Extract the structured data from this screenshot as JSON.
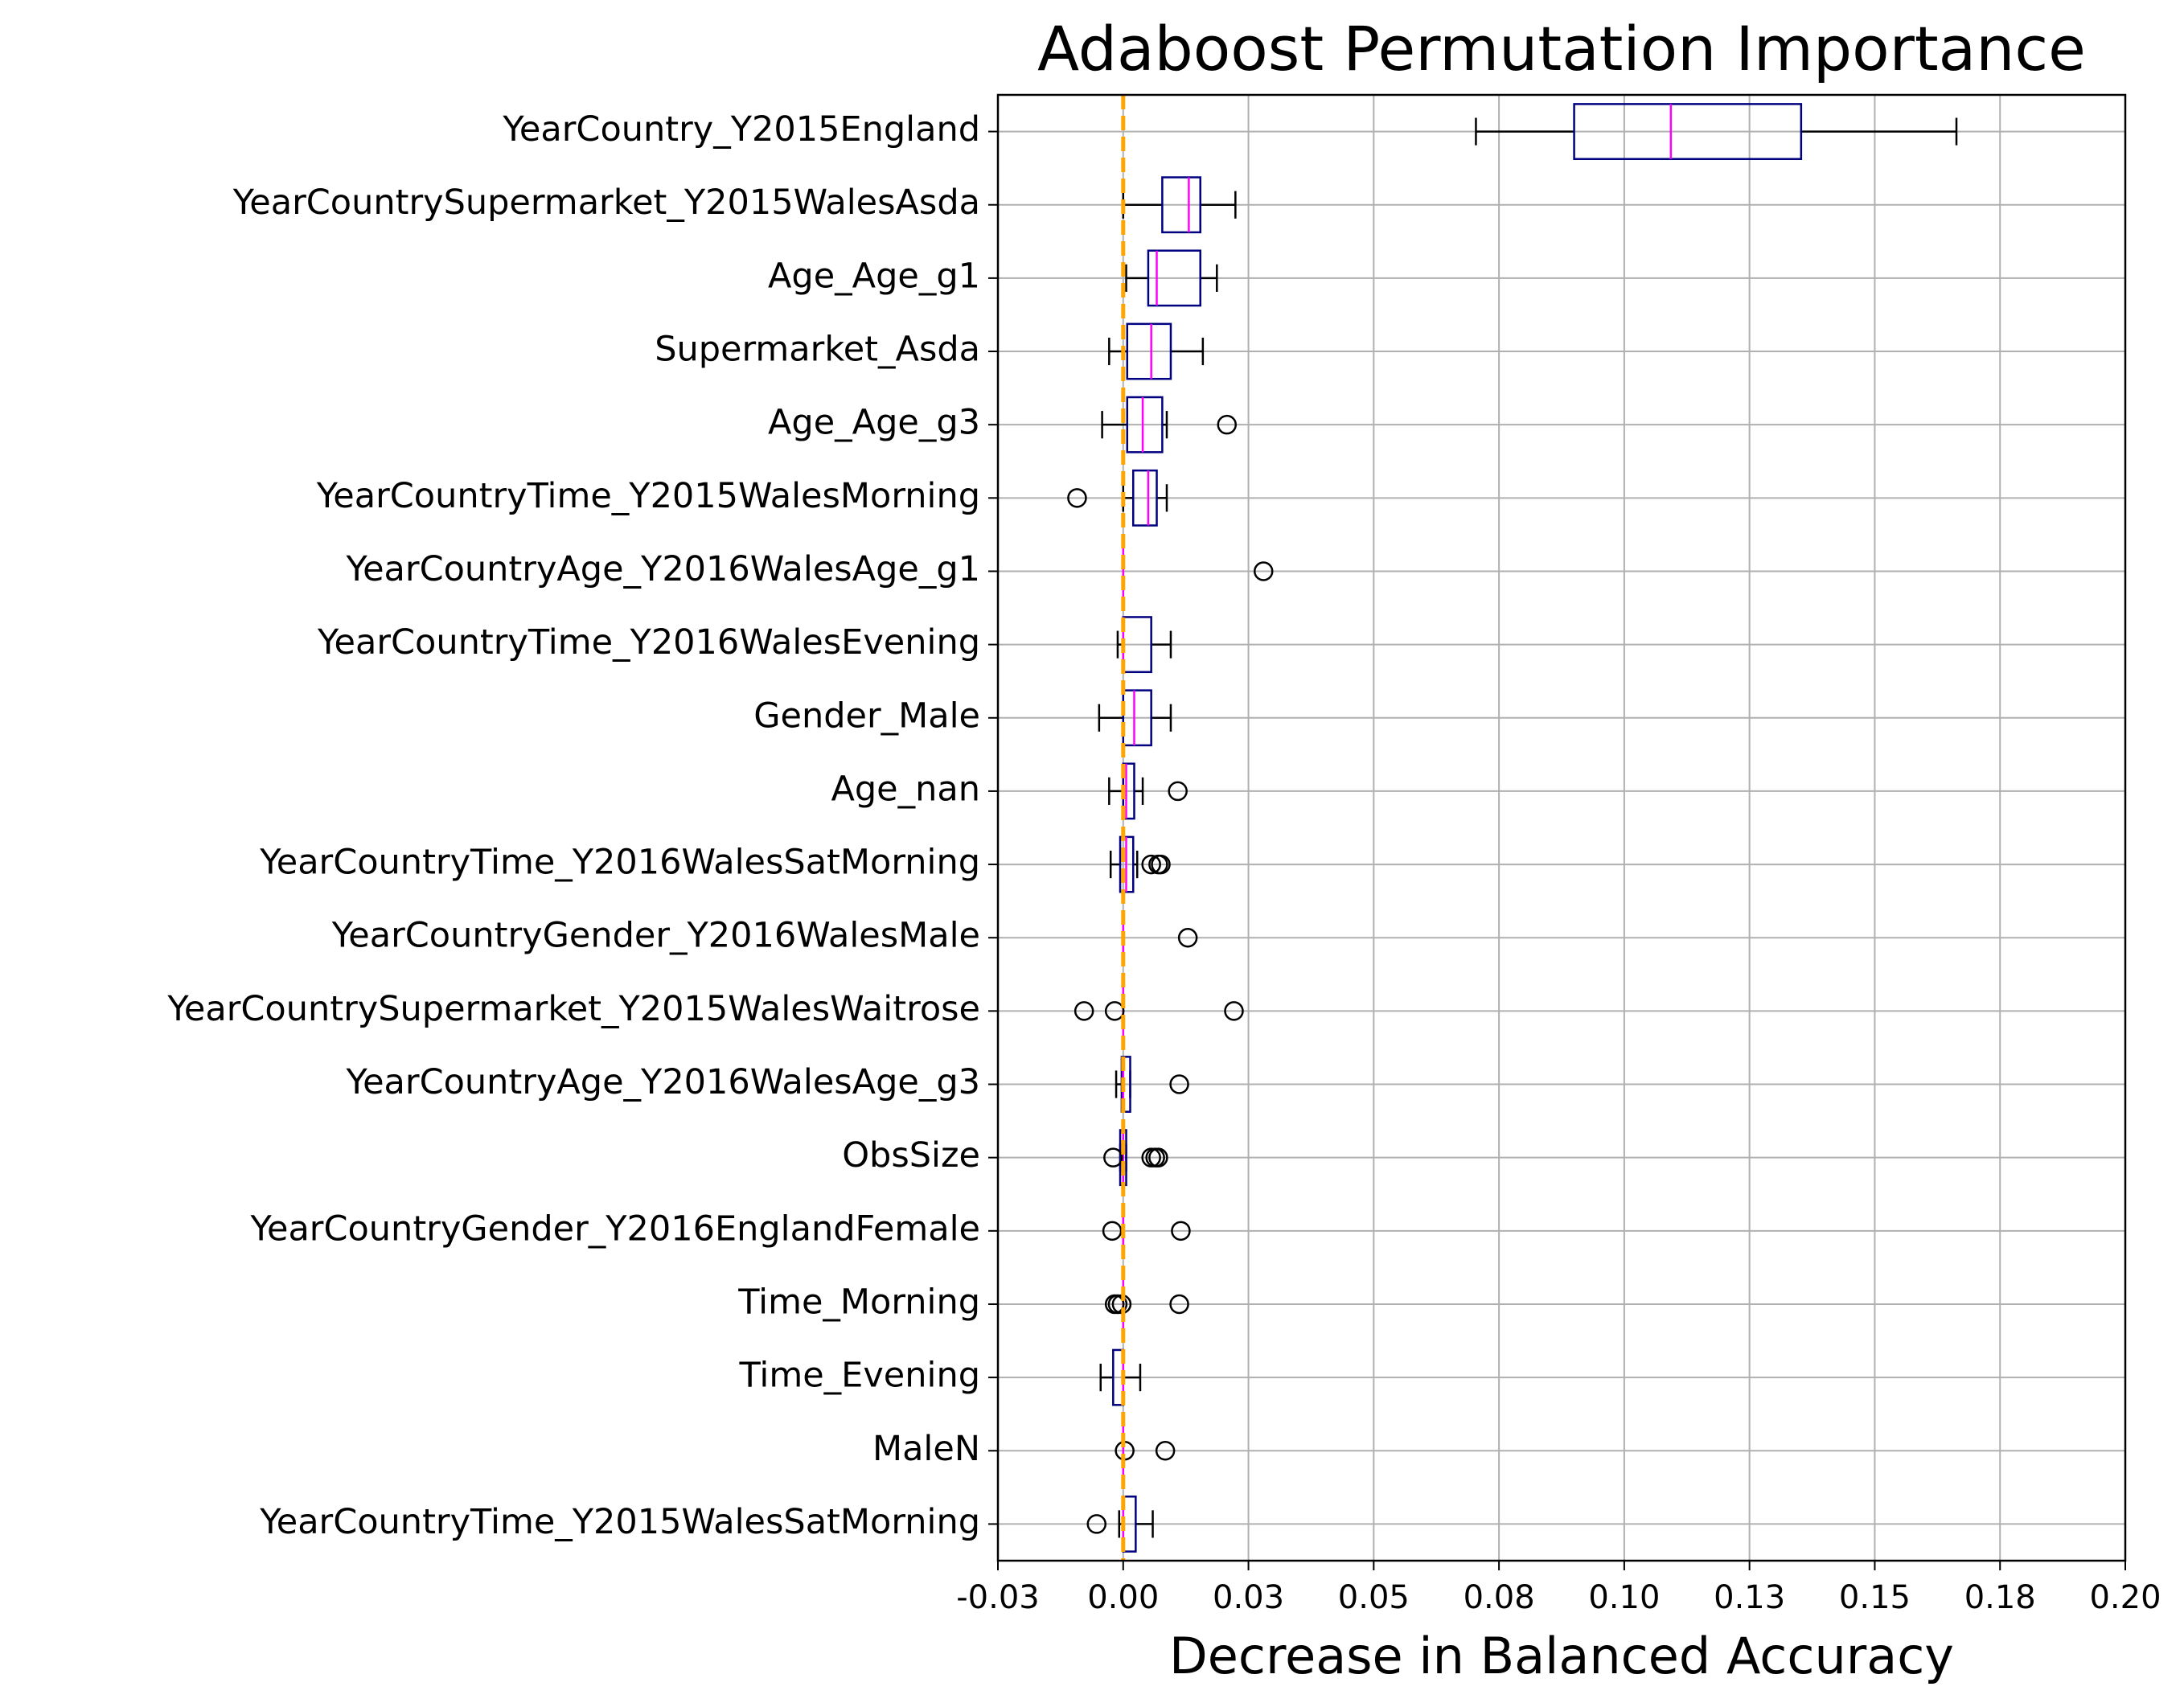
{
  "chart_data": {
    "type": "boxplot",
    "orientation": "horizontal",
    "title": "Adaboost Permutation Importance",
    "x_label": "Decrease in Balanced Accuracy",
    "categories": [
      "YearCountry_Y2015England",
      "YearCountrySupermarket_Y2015WalesAsda",
      "Age_Age_g1",
      "Supermarket_Asda",
      "Age_Age_g3",
      "YearCountryTime_Y2015WalesMorning",
      "YearCountryAge_Y2016WalesAge_g1",
      "YearCountryTime_Y2016WalesEvening",
      "Gender_Male",
      "Age_nan",
      "YearCountryTime_Y2016WalesSatMorning",
      "YearCountryGender_Y2016WalesMale",
      "YearCountrySupermarket_Y2015WalesWaitrose",
      "YearCountryAge_Y2016WalesAge_g3",
      "ObsSize",
      "YearCountryGender_Y2016EnglandFemale",
      "Time_Morning",
      "Time_Evening",
      "MaleN",
      "YearCountryTime_Y2015WalesSatMorning"
    ],
    "boxes": [
      {
        "whislo": 0.0704,
        "q1": 0.09,
        "med": 0.1093,
        "q3": 0.1353,
        "whishi": 0.1663,
        "fliers": []
      },
      {
        "whislo": 0,
        "q1": 0.0078,
        "med": 0.0131,
        "q3": 0.0154,
        "whishi": 0.0224,
        "fliers": []
      },
      {
        "whislo": 0.0006,
        "q1": 0.005,
        "med": 0.0067,
        "q3": 0.0154,
        "whishi": 0.0187,
        "fliers": []
      },
      {
        "whislo": -0.0028,
        "q1": 0.0008,
        "med": 0.0056,
        "q3": 0.0095,
        "whishi": 0.0159,
        "fliers": []
      },
      {
        "whislo": -0.0042,
        "q1": 0.0008,
        "med": 0.0039,
        "q3": 0.0078,
        "whishi": 0.0087,
        "fliers": [
          0.0207
        ]
      },
      {
        "whislo": 0,
        "q1": 0.002,
        "med": 0.005,
        "q3": 0.0067,
        "whishi": 0.0087,
        "fliers": [
          -0.0092
        ]
      },
      {
        "whislo": 0,
        "q1": 0,
        "med": 0,
        "q3": 0,
        "whishi": 0,
        "fliers": [
          0.028
        ]
      },
      {
        "whislo": -0.0011,
        "q1": 0,
        "med": 0,
        "q3": 0.0056,
        "whishi": 0.0095,
        "fliers": []
      },
      {
        "whislo": -0.0048,
        "q1": 0,
        "med": 0.0022,
        "q3": 0.0056,
        "whishi": 0.0095,
        "fliers": []
      },
      {
        "whislo": -0.0028,
        "q1": 0,
        "med": 0.0006,
        "q3": 0.0022,
        "whishi": 0.0039,
        "fliers": [
          0.0109
        ]
      },
      {
        "whislo": -0.0025,
        "q1": -0.0006,
        "med": 0.0006,
        "q3": 0.002,
        "whishi": 0.0028,
        "fliers": [
          0.0056,
          0.007,
          0.0075
        ]
      },
      {
        "whislo": 0,
        "q1": 0,
        "med": 0,
        "q3": 0,
        "whishi": 0,
        "fliers": [
          0.0129
        ]
      },
      {
        "whislo": 0,
        "q1": 0,
        "med": 0,
        "q3": 0,
        "whishi": 0,
        "fliers": [
          -0.0078,
          -0.0017,
          0.0221
        ]
      },
      {
        "whislo": -0.0014,
        "q1": -0.0003,
        "med": 0,
        "q3": 0.0014,
        "whishi": 0.0014,
        "fliers": [
          0.0112
        ]
      },
      {
        "whislo": -0.0006,
        "q1": -0.0006,
        "med": 0,
        "q3": 0.0006,
        "whishi": 0.0006,
        "fliers": [
          -0.002,
          0.0056,
          0.0064,
          0.007
        ]
      },
      {
        "whislo": 0,
        "q1": 0,
        "med": 0,
        "q3": 0,
        "whishi": 0,
        "fliers": [
          -0.0022,
          0.0115
        ]
      },
      {
        "whislo": 0,
        "q1": 0,
        "med": 0,
        "q3": 0,
        "whishi": 0,
        "fliers": [
          -0.0017,
          -0.0011,
          -0.0003,
          0.0112
        ]
      },
      {
        "whislo": -0.0045,
        "q1": -0.002,
        "med": 0,
        "q3": 0,
        "whishi": 0.0034,
        "fliers": []
      },
      {
        "whislo": 0,
        "q1": 0,
        "med": 0,
        "q3": 0,
        "whishi": 0,
        "fliers": [
          0.0003,
          0.0084
        ]
      },
      {
        "whislo": -0.0008,
        "q1": 0,
        "med": 0,
        "q3": 0.0025,
        "whishi": 0.0059,
        "fliers": [
          -0.0053
        ]
      }
    ],
    "box_color": "#000080",
    "median_color": "#ff00ff",
    "whisker_color": "#000000",
    "reference_line": 0,
    "reference_color": "#ffa500",
    "xlim": [
      -0.025,
      0.2
    ],
    "xticks": [
      {
        "value": -0.025,
        "label": "-0.03"
      },
      {
        "value": 0,
        "label": "0.00"
      },
      {
        "value": 0.025,
        "label": "0.03"
      },
      {
        "value": 0.05,
        "label": "0.05"
      },
      {
        "value": 0.075,
        "label": "0.08"
      },
      {
        "value": 0.1,
        "label": "0.10"
      },
      {
        "value": 0.125,
        "label": "0.13"
      },
      {
        "value": 0.15,
        "label": "0.15"
      },
      {
        "value": 0.175,
        "label": "0.18"
      },
      {
        "value": 0.2,
        "label": "0.20"
      }
    ],
    "grid": true
  }
}
